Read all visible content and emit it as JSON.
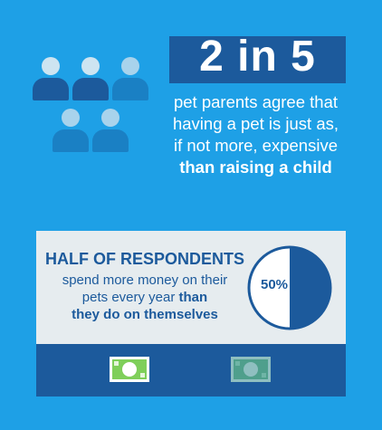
{
  "headline": {
    "stat": "2 in 5",
    "desc_lines": [
      "pet parents agree that",
      "having a pet is just as,",
      "if not more, expensive"
    ],
    "desc_bold": "than raising a child"
  },
  "half": {
    "title": "HALF OF RESPONDENTS",
    "line1": "spend more money on their",
    "line2_plain": "pets every year",
    "line2_bold": "than",
    "line3_bold": "they do on themselves",
    "percent_label": "50%",
    "percent_value": 50
  },
  "colors": {
    "background": "#1ea0e6",
    "navy": "#1c5a9c",
    "panel": "#e6ecef",
    "bill_green": "#7fcf5a",
    "bill_teal": "#4f9f8c"
  },
  "icons": {
    "people": "person-icon",
    "money": "dollar-bill-icon"
  }
}
